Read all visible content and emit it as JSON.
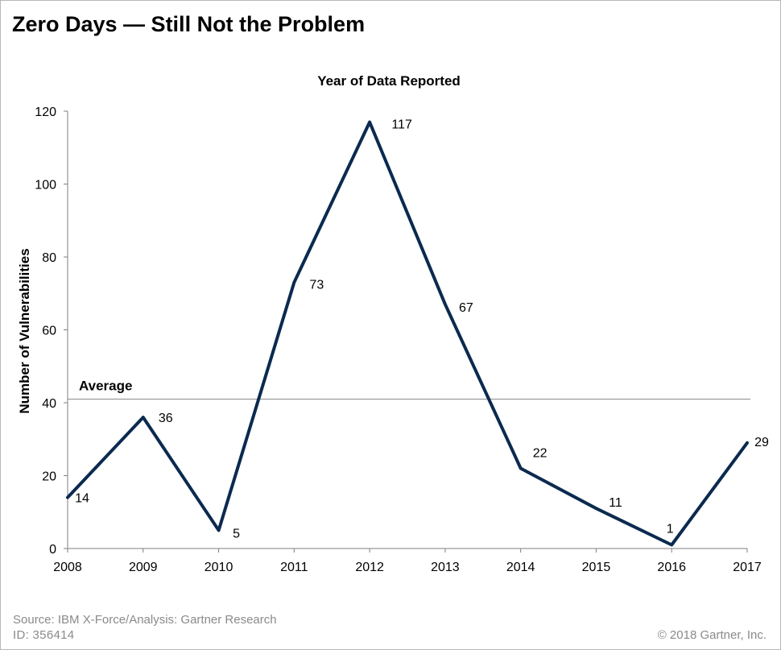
{
  "title": "Zero Days — Still Not the Problem",
  "footer": {
    "source": "Source: IBM X-Force/Analysis: Gartner Research",
    "id": "ID: 356414",
    "copyright": "© 2018 Gartner, Inc."
  },
  "colors": {
    "line": "#0b2a4f",
    "average_line": "#8c8c8c",
    "axis": "#7f7f7f",
    "footer_text": "#8a8a8a"
  },
  "chart_data": {
    "type": "line",
    "title": "Year of Data Reported",
    "xlabel": "",
    "ylabel": "Number of Vulnerabilities",
    "x": [
      "2008",
      "2009",
      "2010",
      "2011",
      "2012",
      "2013",
      "2014",
      "2015",
      "2016",
      "2017"
    ],
    "series": [
      {
        "values": [
          14,
          36,
          5,
          73,
          117,
          67,
          22,
          11,
          1,
          29
        ]
      }
    ],
    "data_labels": [
      "14",
      "36",
      "5",
      "73",
      "117",
      "67",
      "22",
      "11",
      "1",
      "29"
    ],
    "reference_line": {
      "label": "Average",
      "value": 41
    },
    "ylim": [
      0,
      120
    ],
    "yticks": [
      0,
      20,
      40,
      60,
      80,
      100,
      120
    ],
    "grid": false,
    "legend": "none"
  }
}
